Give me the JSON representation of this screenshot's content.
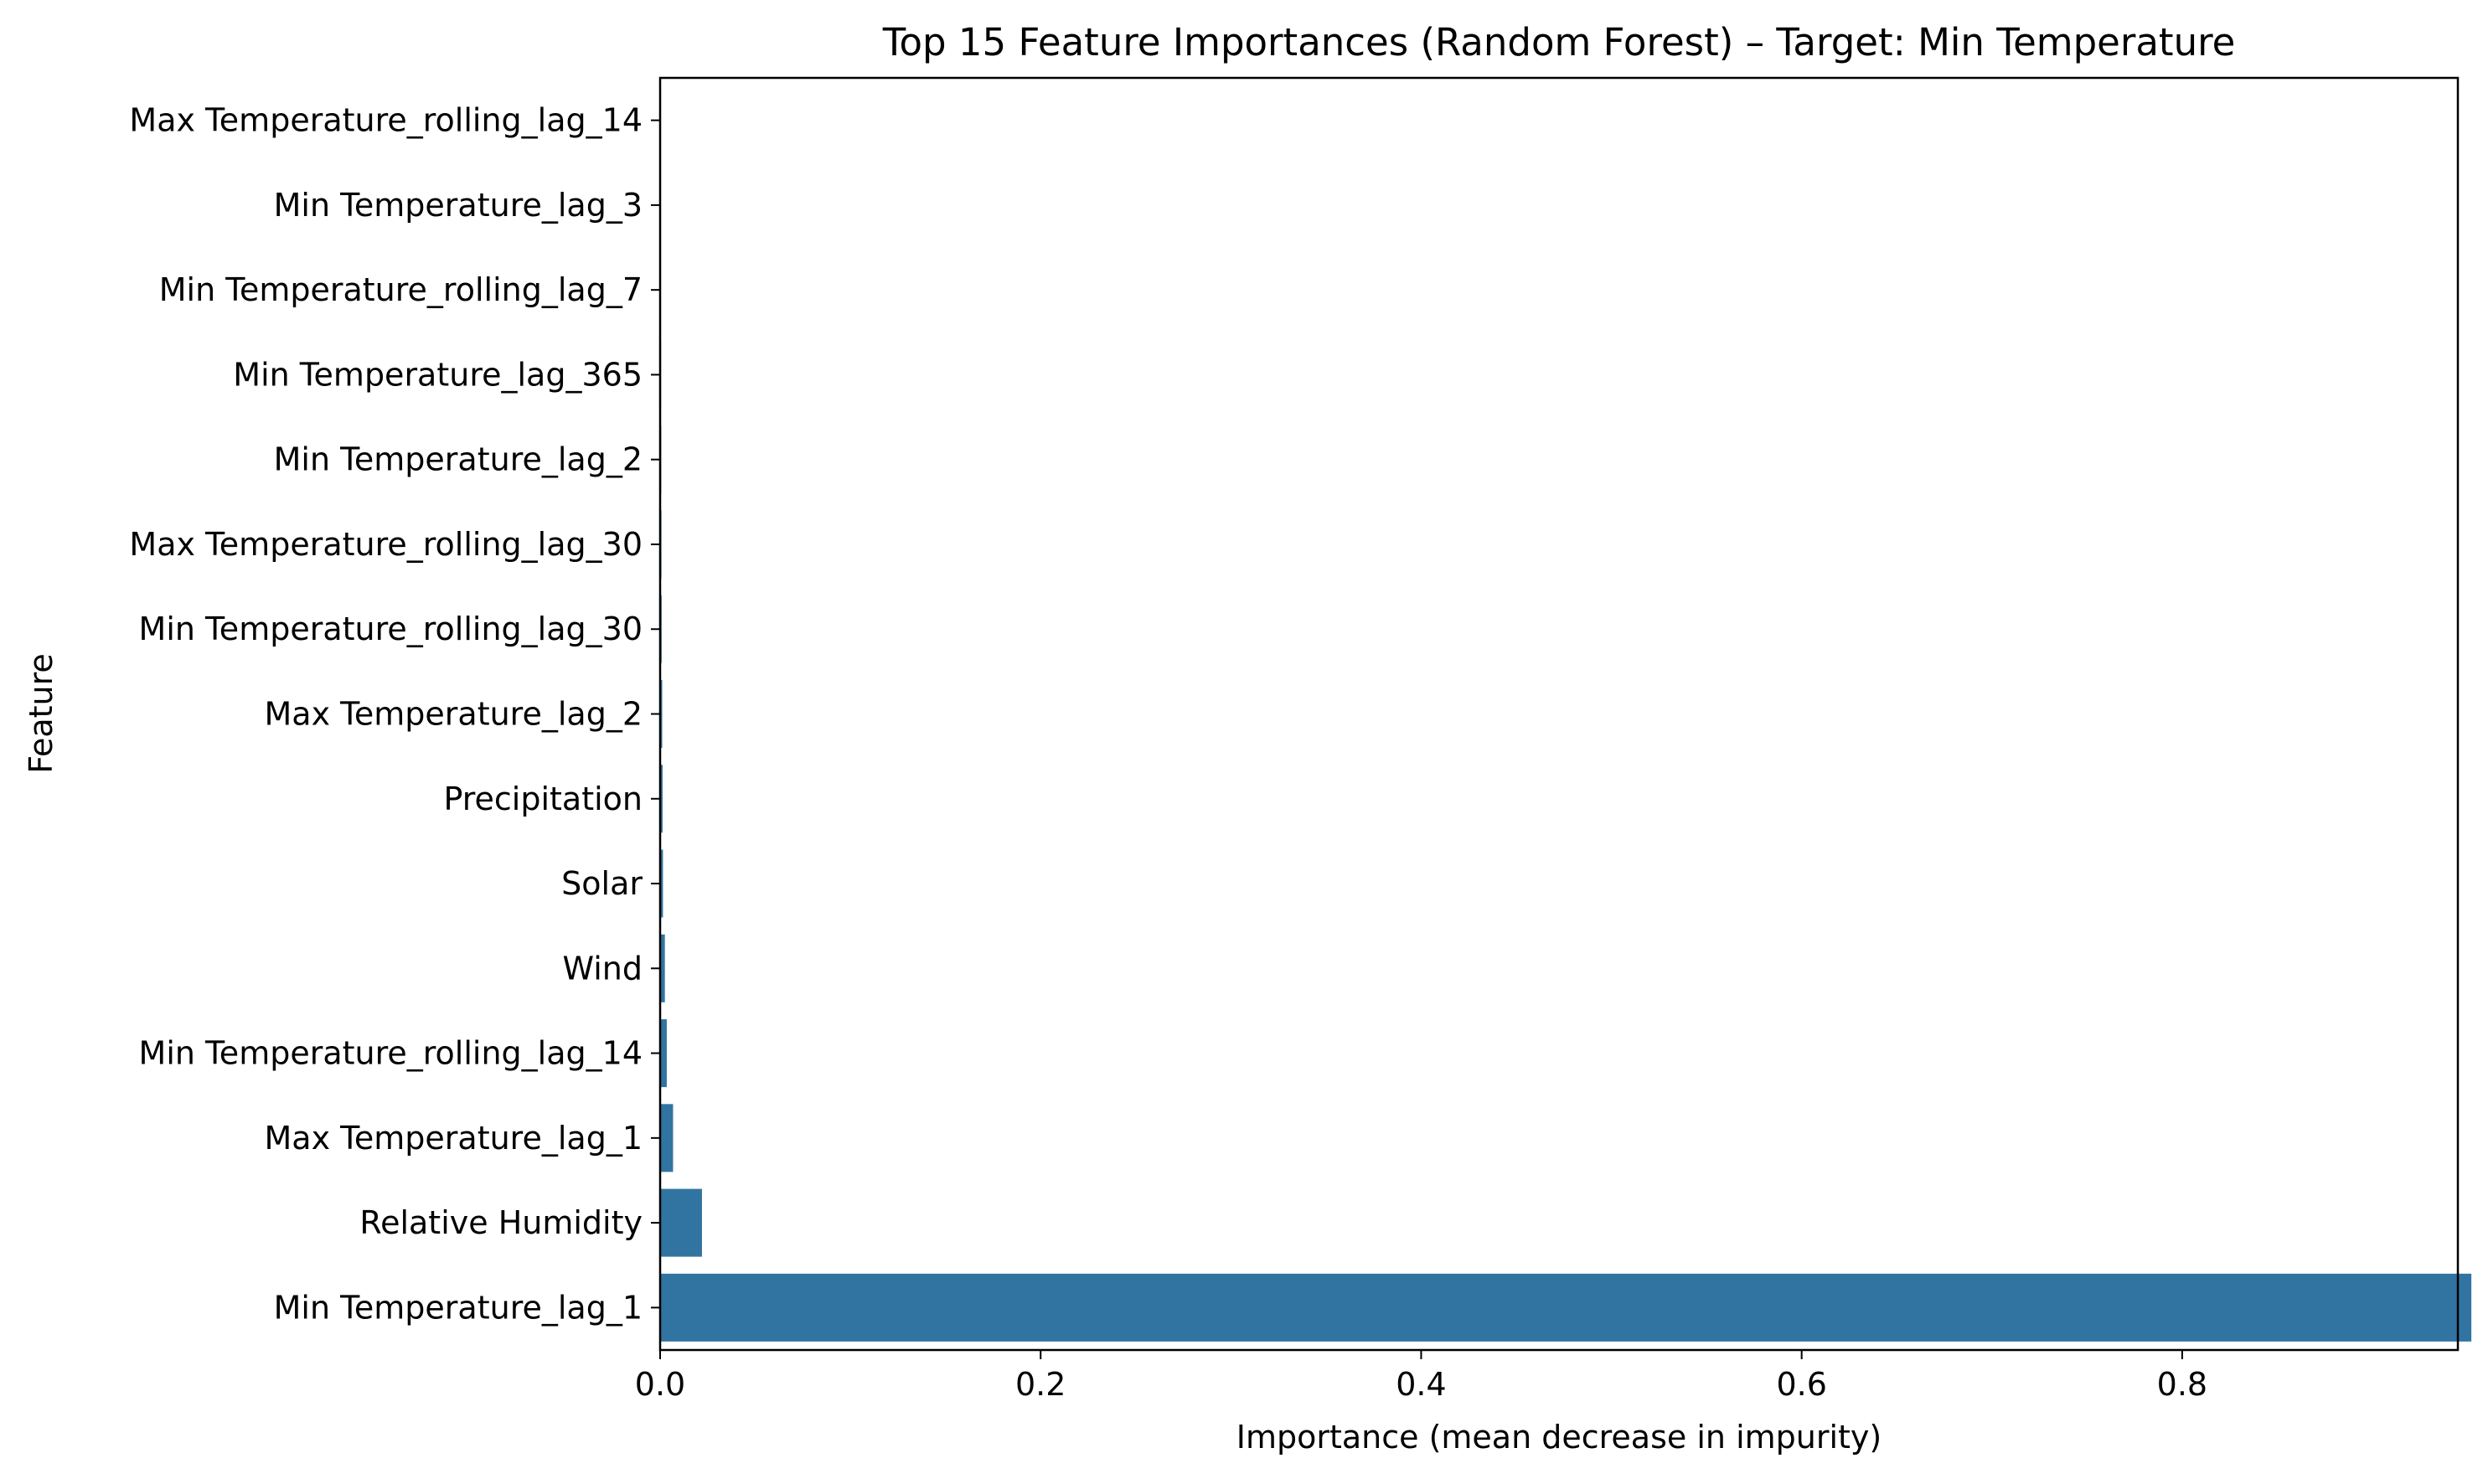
{
  "chart_data": {
    "type": "bar",
    "orientation": "horizontal",
    "title": "Top 15 Feature Importances (Random Forest) – Target: Min Temperature",
    "xlabel": "Importance (mean decrease in impurity)",
    "ylabel": "Feature",
    "xlim": [
      0,
      1.0
    ],
    "xticks": [
      0.0,
      0.2,
      0.4,
      0.6,
      0.8
    ],
    "xtick_labels": [
      "0.0",
      "0.2",
      "0.4",
      "0.6",
      "0.8"
    ],
    "grid": false,
    "bar_color": "#3274a1",
    "categories": [
      "Max Temperature_rolling_lag_14",
      "Min Temperature_lag_3",
      "Min Temperature_rolling_lag_7",
      "Min Temperature_lag_365",
      "Min Temperature_lag_2",
      "Max Temperature_rolling_lag_30",
      "Min Temperature_rolling_lag_30",
      "Max Temperature_lag_2",
      "Precipitation",
      "Solar",
      "Wind",
      "Min Temperature_rolling_lag_14",
      "Max Temperature_lag_1",
      "Relative Humidity",
      "Min Temperature_lag_1"
    ],
    "values": [
      0.0002,
      0.0003,
      0.0004,
      0.0005,
      0.0006,
      0.0007,
      0.0008,
      0.0011,
      0.0013,
      0.0015,
      0.0025,
      0.0035,
      0.0068,
      0.022,
      0.952
    ]
  }
}
